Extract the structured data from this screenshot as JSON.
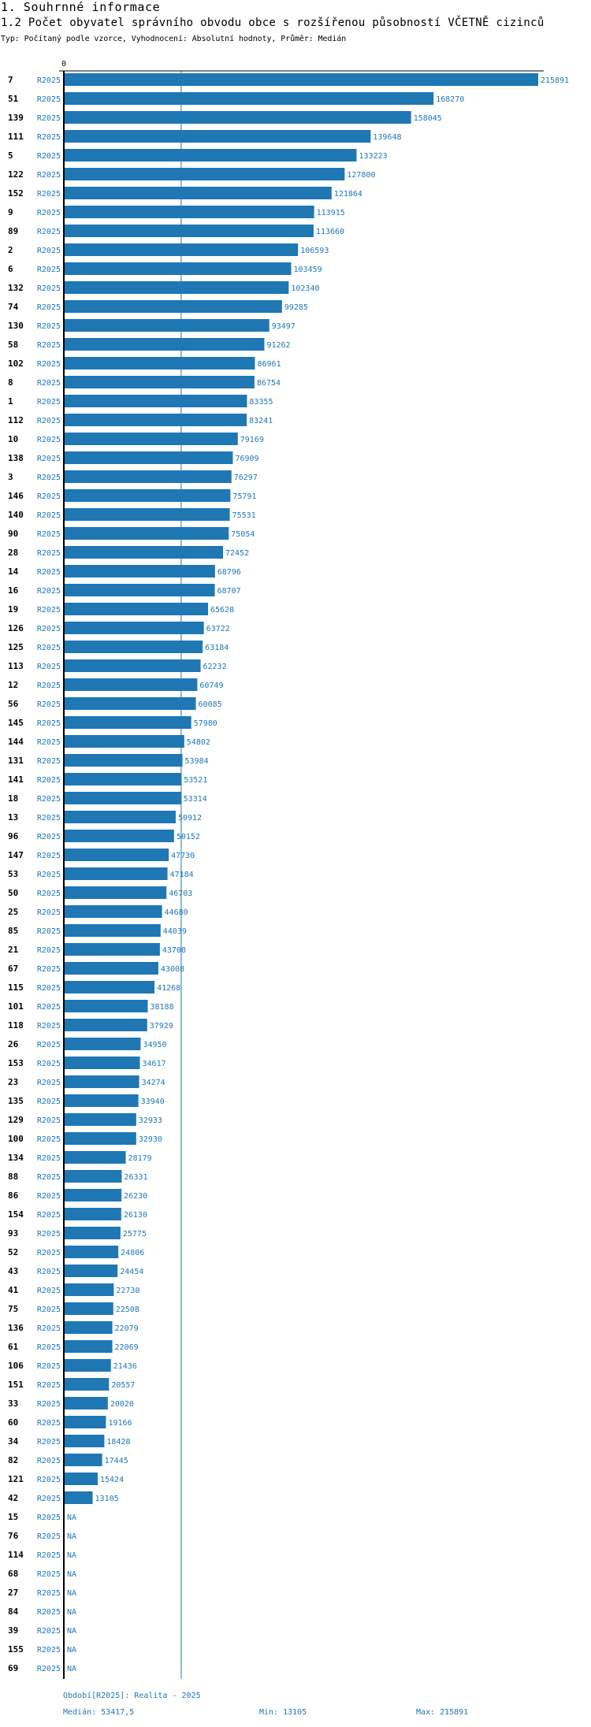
{
  "header": {
    "section": "1. Souhrnné informace",
    "title": "1.2 Počet obyvatel správního obvodu obce s rozšířenou působností VČETNĚ cizinců",
    "subtitle": "Typ: Počítaný podle vzorce, Vyhodnocení: Absolutní hodnoty, Průměr: Medián"
  },
  "chart_data": {
    "type": "bar",
    "orientation": "horizontal",
    "title": "1.2 Počet obyvatel správního obvodu obce s rozšířenou působností VČETNĚ cizinců",
    "x_tick_labels": [
      "0"
    ],
    "xlim": [
      0,
      215891
    ],
    "reference_line": {
      "name": "Medián",
      "value": 53417.5
    },
    "bar_color": "#1f77b4",
    "rows": [
      {
        "id": "7",
        "period": "R2025",
        "value": 215891,
        "label": "215891"
      },
      {
        "id": "51",
        "period": "R2025",
        "value": 168270,
        "label": "168270"
      },
      {
        "id": "139",
        "period": "R2025",
        "value": 158045,
        "label": "158045"
      },
      {
        "id": "111",
        "period": "R2025",
        "value": 139648,
        "label": "139648"
      },
      {
        "id": "5",
        "period": "R2025",
        "value": 133223,
        "label": "133223"
      },
      {
        "id": "122",
        "period": "R2025",
        "value": 127800,
        "label": "127800"
      },
      {
        "id": "152",
        "period": "R2025",
        "value": 121864,
        "label": "121864"
      },
      {
        "id": "9",
        "period": "R2025",
        "value": 113915,
        "label": "113915"
      },
      {
        "id": "89",
        "period": "R2025",
        "value": 113660,
        "label": "113660"
      },
      {
        "id": "2",
        "period": "R2025",
        "value": 106593,
        "label": "106593"
      },
      {
        "id": "6",
        "period": "R2025",
        "value": 103459,
        "label": "103459"
      },
      {
        "id": "132",
        "period": "R2025",
        "value": 102340,
        "label": "102340"
      },
      {
        "id": "74",
        "period": "R2025",
        "value": 99285,
        "label": "99285"
      },
      {
        "id": "130",
        "period": "R2025",
        "value": 93497,
        "label": "93497"
      },
      {
        "id": "58",
        "period": "R2025",
        "value": 91262,
        "label": "91262"
      },
      {
        "id": "102",
        "period": "R2025",
        "value": 86961,
        "label": "86961"
      },
      {
        "id": "8",
        "period": "R2025",
        "value": 86754,
        "label": "86754"
      },
      {
        "id": "1",
        "period": "R2025",
        "value": 83355,
        "label": "83355"
      },
      {
        "id": "112",
        "period": "R2025",
        "value": 83241,
        "label": "83241"
      },
      {
        "id": "10",
        "period": "R2025",
        "value": 79169,
        "label": "79169"
      },
      {
        "id": "138",
        "period": "R2025",
        "value": 76909,
        "label": "76909"
      },
      {
        "id": "3",
        "period": "R2025",
        "value": 76297,
        "label": "76297"
      },
      {
        "id": "146",
        "period": "R2025",
        "value": 75791,
        "label": "75791"
      },
      {
        "id": "140",
        "period": "R2025",
        "value": 75531,
        "label": "75531"
      },
      {
        "id": "90",
        "period": "R2025",
        "value": 75054,
        "label": "75054"
      },
      {
        "id": "28",
        "period": "R2025",
        "value": 72452,
        "label": "72452"
      },
      {
        "id": "14",
        "period": "R2025",
        "value": 68796,
        "label": "68796"
      },
      {
        "id": "16",
        "period": "R2025",
        "value": 68707,
        "label": "68707"
      },
      {
        "id": "19",
        "period": "R2025",
        "value": 65628,
        "label": "65628"
      },
      {
        "id": "126",
        "period": "R2025",
        "value": 63722,
        "label": "63722"
      },
      {
        "id": "125",
        "period": "R2025",
        "value": 63184,
        "label": "63184"
      },
      {
        "id": "113",
        "period": "R2025",
        "value": 62232,
        "label": "62232"
      },
      {
        "id": "12",
        "period": "R2025",
        "value": 60749,
        "label": "60749"
      },
      {
        "id": "56",
        "period": "R2025",
        "value": 60085,
        "label": "60085"
      },
      {
        "id": "145",
        "period": "R2025",
        "value": 57980,
        "label": "57980"
      },
      {
        "id": "144",
        "period": "R2025",
        "value": 54802,
        "label": "54802"
      },
      {
        "id": "131",
        "period": "R2025",
        "value": 53984,
        "label": "53984"
      },
      {
        "id": "141",
        "period": "R2025",
        "value": 53521,
        "label": "53521"
      },
      {
        "id": "18",
        "period": "R2025",
        "value": 53314,
        "label": "53314"
      },
      {
        "id": "13",
        "period": "R2025",
        "value": 50912,
        "label": "50912"
      },
      {
        "id": "96",
        "period": "R2025",
        "value": 50152,
        "label": "50152"
      },
      {
        "id": "147",
        "period": "R2025",
        "value": 47730,
        "label": "47730"
      },
      {
        "id": "53",
        "period": "R2025",
        "value": 47184,
        "label": "47184"
      },
      {
        "id": "50",
        "period": "R2025",
        "value": 46703,
        "label": "46703"
      },
      {
        "id": "25",
        "period": "R2025",
        "value": 44680,
        "label": "44680"
      },
      {
        "id": "85",
        "period": "R2025",
        "value": 44039,
        "label": "44039"
      },
      {
        "id": "21",
        "period": "R2025",
        "value": 43708,
        "label": "43708"
      },
      {
        "id": "67",
        "period": "R2025",
        "value": 43008,
        "label": "43008"
      },
      {
        "id": "115",
        "period": "R2025",
        "value": 41268,
        "label": "41268"
      },
      {
        "id": "101",
        "period": "R2025",
        "value": 38188,
        "label": "38188"
      },
      {
        "id": "118",
        "period": "R2025",
        "value": 37929,
        "label": "37929"
      },
      {
        "id": "26",
        "period": "R2025",
        "value": 34950,
        "label": "34950"
      },
      {
        "id": "153",
        "period": "R2025",
        "value": 34617,
        "label": "34617"
      },
      {
        "id": "23",
        "period": "R2025",
        "value": 34274,
        "label": "34274"
      },
      {
        "id": "135",
        "period": "R2025",
        "value": 33940,
        "label": "33940"
      },
      {
        "id": "129",
        "period": "R2025",
        "value": 32933,
        "label": "32933"
      },
      {
        "id": "100",
        "period": "R2025",
        "value": 32930,
        "label": "32930"
      },
      {
        "id": "134",
        "period": "R2025",
        "value": 28179,
        "label": "28179"
      },
      {
        "id": "88",
        "period": "R2025",
        "value": 26331,
        "label": "26331"
      },
      {
        "id": "86",
        "period": "R2025",
        "value": 26230,
        "label": "26230"
      },
      {
        "id": "154",
        "period": "R2025",
        "value": 26130,
        "label": "26130"
      },
      {
        "id": "93",
        "period": "R2025",
        "value": 25775,
        "label": "25775"
      },
      {
        "id": "52",
        "period": "R2025",
        "value": 24806,
        "label": "24806"
      },
      {
        "id": "43",
        "period": "R2025",
        "value": 24454,
        "label": "24454"
      },
      {
        "id": "41",
        "period": "R2025",
        "value": 22730,
        "label": "22730"
      },
      {
        "id": "75",
        "period": "R2025",
        "value": 22508,
        "label": "22508"
      },
      {
        "id": "136",
        "period": "R2025",
        "value": 22079,
        "label": "22079"
      },
      {
        "id": "61",
        "period": "R2025",
        "value": 22069,
        "label": "22069"
      },
      {
        "id": "106",
        "period": "R2025",
        "value": 21436,
        "label": "21436"
      },
      {
        "id": "151",
        "period": "R2025",
        "value": 20557,
        "label": "20557"
      },
      {
        "id": "33",
        "period": "R2025",
        "value": 20020,
        "label": "20020"
      },
      {
        "id": "60",
        "period": "R2025",
        "value": 19166,
        "label": "19166"
      },
      {
        "id": "34",
        "period": "R2025",
        "value": 18428,
        "label": "18428"
      },
      {
        "id": "82",
        "period": "R2025",
        "value": 17445,
        "label": "17445"
      },
      {
        "id": "121",
        "period": "R2025",
        "value": 15424,
        "label": "15424"
      },
      {
        "id": "42",
        "period": "R2025",
        "value": 13105,
        "label": "13105"
      },
      {
        "id": "15",
        "period": "R2025",
        "value": null,
        "label": "NA"
      },
      {
        "id": "76",
        "period": "R2025",
        "value": null,
        "label": "NA"
      },
      {
        "id": "114",
        "period": "R2025",
        "value": null,
        "label": "NA"
      },
      {
        "id": "68",
        "period": "R2025",
        "value": null,
        "label": "NA"
      },
      {
        "id": "27",
        "period": "R2025",
        "value": null,
        "label": "NA"
      },
      {
        "id": "84",
        "period": "R2025",
        "value": null,
        "label": "NA"
      },
      {
        "id": "39",
        "period": "R2025",
        "value": null,
        "label": "NA"
      },
      {
        "id": "155",
        "period": "R2025",
        "value": null,
        "label": "NA"
      },
      {
        "id": "69",
        "period": "R2025",
        "value": null,
        "label": "NA"
      }
    ]
  },
  "footer": {
    "period_legend": "Období[R2025]: Realita - 2025",
    "median": "Medián: 53417,5",
    "min": "Min: 13105",
    "max": "Max: 215891"
  }
}
